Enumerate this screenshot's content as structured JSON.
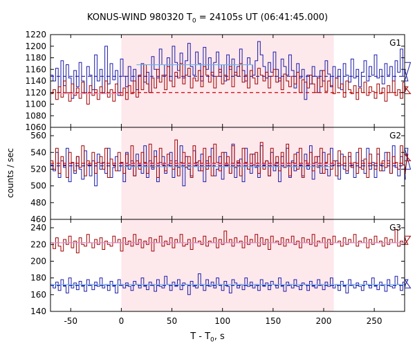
{
  "title": "KONUS-WIND 980320 T",
  "title_sub": "0",
  "title_rest": " = 24105s UT (06:41:45.000)",
  "xlabel": "T - T",
  "xlabel_sub": "0",
  "xlabel_rest": ", s",
  "ylabel": "counts / sec",
  "colors": {
    "red_series": "#a00000",
    "blue_series": "#1a1aa8",
    "red_level": "#dd99cc",
    "blue_level": "#6fb3e6",
    "red_background": "#cc0000",
    "blue_background": "#1a1aa8",
    "highlight": "#fde8ec"
  },
  "chart_data": [
    {
      "type": "line",
      "name": "G1",
      "label": "G1",
      "xlim": [
        -70,
        280
      ],
      "ylim": [
        1060,
        1220
      ],
      "yticks": [
        1060,
        1080,
        1100,
        1120,
        1140,
        1160,
        1180,
        1200,
        1220
      ],
      "highlight_interval": [
        0,
        210
      ],
      "x_start": -70,
      "bin_width": 2.56,
      "series": [
        {
          "color_key": "blue_series",
          "values": [
            1150,
            1140,
            1162,
            1120,
            1175,
            1132,
            1168,
            1145,
            1110,
            1158,
            1130,
            1172,
            1140,
            1118,
            1165,
            1150,
            1125,
            1185,
            1140,
            1160,
            1120,
            1200,
            1135,
            1170,
            1142,
            1158,
            1115,
            1178,
            1148,
            1130,
            1165,
            1140,
            1160,
            1125,
            1150,
            1170,
            1138,
            1155,
            1120,
            1182,
            1160,
            1145,
            1195,
            1168,
            1150,
            1180,
            1140,
            1200,
            1172,
            1158,
            1188,
            1145,
            1175,
            1205,
            1165,
            1150,
            1190,
            1170,
            1140,
            1198,
            1160,
            1180,
            1150,
            1172,
            1190,
            1155,
            1168,
            1140,
            1185,
            1160,
            1178,
            1150,
            1165,
            1195,
            1158,
            1140,
            1180,
            1168,
            1150,
            1175,
            1208,
            1185,
            1165,
            1145,
            1172,
            1155,
            1190,
            1160,
            1140,
            1178,
            1165,
            1150,
            1185,
            1158,
            1128,
            1170,
            1145,
            1160,
            1108,
            1150,
            1135,
            1165,
            1148,
            1120,
            1158,
            1140,
            1175,
            1152,
            1130,
            1165,
            1145,
            1160,
            1125,
            1170,
            1150,
            1138,
            1178,
            1145,
            1160,
            1130,
            1155,
            1175,
            1140,
            1165,
            1150,
            1185,
            1145,
            1160,
            1135,
            1170,
            1150,
            1165,
            1140,
            1175,
            1155,
            1195,
            1148,
            1160,
            1140,
            1172
          ]
        },
        {
          "color_key": "red_series",
          "values": [
            1118,
            1125,
            1108,
            1130,
            1112,
            1140,
            1120,
            1105,
            1135,
            1115,
            1128,
            1110,
            1138,
            1120,
            1100,
            1132,
            1115,
            1125,
            1108,
            1130,
            1118,
            1140,
            1112,
            1125,
            1105,
            1135,
            1120,
            1115,
            1128,
            1108,
            1132,
            1118,
            1140,
            1112,
            1150,
            1125,
            1168,
            1135,
            1120,
            1145,
            1128,
            1160,
            1138,
            1150,
            1125,
            1165,
            1140,
            1130,
            1155,
            1145,
            1170,
            1135,
            1150,
            1162,
            1128,
            1145,
            1140,
            1158,
            1130,
            1165,
            1150,
            1138,
            1155,
            1128,
            1148,
            1160,
            1135,
            1150,
            1142,
            1165,
            1130,
            1155,
            1148,
            1170,
            1138,
            1150,
            1128,
            1158,
            1145,
            1135,
            1162,
            1150,
            1140,
            1155,
            1128,
            1148,
            1160,
            1138,
            1145,
            1125,
            1152,
            1140,
            1130,
            1148,
            1135,
            1155,
            1120,
            1142,
            1138,
            1128,
            1150,
            1135,
            1120,
            1145,
            1130,
            1158,
            1122,
            1140,
            1132,
            1118,
            1145,
            1128,
            1135,
            1112,
            1140,
            1125,
            1118,
            1132,
            1108,
            1128,
            1120,
            1138,
            1115,
            1130,
            1122,
            1110,
            1135,
            1118,
            1128,
            1105,
            1132,
            1120,
            1140,
            1115,
            1125,
            1110,
            1138,
            1122,
            1130,
            1118
          ]
        }
      ],
      "levels": [
        {
          "color_key": "blue_background",
          "y": 1148,
          "dashed": true
        },
        {
          "color_key": "red_background",
          "y": 1120,
          "dashed": true
        },
        {
          "color_key": "blue_level",
          "x": [
            15,
            130
          ],
          "y": 1168,
          "dashed": false
        },
        {
          "color_key": "red_level",
          "x": [
            -60,
            0
          ],
          "y": 1118,
          "dashed": false
        }
      ]
    },
    {
      "type": "line",
      "name": "G2",
      "label": "G2",
      "xlim": [
        -70,
        280
      ],
      "ylim": [
        460,
        570
      ],
      "yticks": [
        460,
        480,
        500,
        520,
        540,
        560
      ],
      "highlight_interval": [
        0,
        210
      ],
      "x_start": -70,
      "bin_width": 2.56,
      "series": [
        {
          "color_key": "blue_series",
          "values": [
            525,
            518,
            540,
            510,
            530,
            522,
            545,
            505,
            528,
            515,
            535,
            520,
            508,
            542,
            525,
            512,
            530,
            500,
            538,
            520,
            528,
            515,
            545,
            510,
            522,
            535,
            518,
            528,
            505,
            540,
            520,
            530,
            512,
            538,
            525,
            515,
            548,
            510,
            530,
            520,
            542,
            505,
            528,
            535,
            515,
            525,
            540,
            510,
            530,
            522,
            548,
            500,
            535,
            520,
            512,
            542,
            528,
            518,
            538,
            505,
            530,
            524,
            545,
            512,
            520,
            535,
            508,
            540,
            525,
            515,
            550,
            510,
            528,
            532,
            505,
            545,
            520,
            515,
            538,
            522,
            510,
            548,
            525,
            530,
            512,
            540,
            518,
            528,
            505,
            535,
            522,
            545,
            510,
            530,
            518,
            540,
            525,
            512,
            538,
            520,
            548,
            508,
            528,
            535,
            515,
            540,
            520,
            512,
            545,
            525,
            530,
            508,
            538,
            520,
            515,
            535,
            525,
            510,
            540,
            522,
            530,
            515,
            545,
            520,
            528,
            510,
            538,
            525,
            518,
            540,
            530,
            515,
            548,
            522,
            512,
            535,
            525,
            508,
            545,
            520
          ]
        },
        {
          "color_key": "red_series",
          "values": [
            530,
            520,
            545,
            515,
            535,
            525,
            510,
            540,
            528,
            518,
            535,
            522,
            548,
            512,
            530,
            525,
            540,
            515,
            528,
            535,
            520,
            545,
            510,
            532,
            525,
            518,
            540,
            528,
            515,
            538,
            525,
            548,
            512,
            530,
            520,
            540,
            528,
            515,
            550,
            522,
            535,
            510,
            545,
            525,
            518,
            538,
            530,
            520,
            555,
            512,
            528,
            540,
            522,
            535,
            510,
            548,
            525,
            530,
            518,
            545,
            520,
            535,
            512,
            550,
            528,
            518,
            540,
            525,
            535,
            515,
            548,
            522,
            530,
            512,
            545,
            528,
            520,
            538,
            525,
            540,
            515,
            552,
            520,
            530,
            512,
            545,
            525,
            535,
            518,
            540,
            522,
            550,
            512,
            528,
            538,
            520,
            545,
            510,
            530,
            525,
            540,
            518,
            535,
            522,
            545,
            515,
            528,
            538,
            520,
            530,
            512,
            542,
            525,
            535,
            518,
            540,
            522,
            528,
            515,
            545,
            520,
            532,
            510,
            538,
            525,
            520,
            545,
            518,
            530,
            522,
            540,
            515,
            535,
            528,
            520,
            548,
            525,
            515,
            538,
            530
          ]
        }
      ],
      "levels": [
        {
          "color_key": "blue_background",
          "y": 524,
          "dashed": true
        },
        {
          "color_key": "red_background",
          "y": 527,
          "dashed": true
        },
        {
          "color_key": "blue_level",
          "x": [
            0,
            210
          ],
          "y": 523,
          "dashed": false
        },
        {
          "color_key": "red_level",
          "x": [
            0,
            210
          ],
          "y": 526,
          "dashed": false
        }
      ]
    },
    {
      "type": "line",
      "name": "G3",
      "label": "G3",
      "xlim": [
        -70,
        280
      ],
      "ylim": [
        140,
        250
      ],
      "yticks": [
        140,
        160,
        180,
        200,
        220,
        240
      ],
      "highlight_interval": [
        0,
        210
      ],
      "x_start": -70,
      "bin_width": 2.56,
      "series": [
        {
          "color_key": "blue_series",
          "values": [
            172,
            168,
            175,
            165,
            178,
            170,
            162,
            180,
            168,
            174,
            166,
            176,
            170,
            164,
            178,
            172,
            166,
            175,
            170,
            180,
            168,
            172,
            165,
            176,
            170,
            162,
            178,
            172,
            168,
            174,
            170,
            165,
            176,
            172,
            168,
            180,
            170,
            166,
            175,
            172,
            164,
            178,
            170,
            168,
            182,
            172,
            165,
            175,
            170,
            178,
            166,
            174,
            172,
            160,
            176,
            170,
            168,
            185,
            172,
            165,
            178,
            170,
            175,
            168,
            180,
            172,
            165,
            176,
            170,
            162,
            178,
            174,
            168,
            172,
            166,
            180,
            170,
            175,
            168,
            172,
            165,
            178,
            170,
            174,
            166,
            176,
            172,
            168,
            180,
            170,
            164,
            175,
            172,
            168,
            178,
            170,
            166,
            174,
            172,
            165,
            176,
            170,
            168,
            178,
            172,
            166,
            175,
            170,
            180,
            168,
            172,
            165,
            176,
            170,
            162,
            178,
            172,
            168,
            174,
            170,
            165,
            176,
            172,
            168,
            180,
            170,
            166,
            175,
            172,
            164,
            178,
            170,
            168,
            182,
            172,
            165,
            175,
            170,
            178,
            168
          ]
        },
        {
          "color_key": "red_series",
          "values": [
            222,
            215,
            228,
            218,
            212,
            226,
            220,
            230,
            216,
            224,
            210,
            228,
            220,
            218,
            232,
            222,
            216,
            226,
            220,
            228,
            214,
            224,
            220,
            218,
            230,
            222,
            226,
            212,
            228,
            220,
            224,
            218,
            232,
            220,
            226,
            216,
            224,
            220,
            228,
            212,
            226,
            222,
            230,
            218,
            224,
            220,
            228,
            216,
            226,
            222,
            232,
            218,
            220,
            226,
            214,
            228,
            222,
            224,
            220,
            230,
            218,
            224,
            222,
            228,
            216,
            226,
            220,
            236,
            222,
            226,
            218,
            228,
            222,
            224,
            216,
            230,
            220,
            226,
            222,
            232,
            218,
            228,
            220,
            226,
            214,
            230,
            222,
            224,
            220,
            228,
            218,
            226,
            222,
            230,
            220,
            224,
            216,
            228,
            222,
            226,
            220,
            232,
            218,
            224,
            222,
            228,
            216,
            226,
            220,
            230,
            222,
            224,
            218,
            228,
            220,
            226,
            222,
            232,
            218,
            224,
            222,
            228,
            216,
            226,
            220,
            230,
            222,
            224,
            218,
            228,
            220,
            226,
            222,
            238,
            218,
            224,
            222,
            228,
            220,
            230
          ]
        }
      ],
      "levels": [
        {
          "color_key": "blue_background",
          "y": 171,
          "dashed": true
        },
        {
          "color_key": "red_background",
          "y": 222,
          "dashed": true
        },
        {
          "color_key": "blue_level",
          "x": [
            -70,
            280
          ],
          "y": 172,
          "dashed": false
        },
        {
          "color_key": "red_level",
          "x": [
            -70,
            280
          ],
          "y": 222,
          "dashed": false
        }
      ]
    }
  ],
  "x_ticks": [
    -50,
    0,
    50,
    100,
    150,
    200,
    250
  ]
}
